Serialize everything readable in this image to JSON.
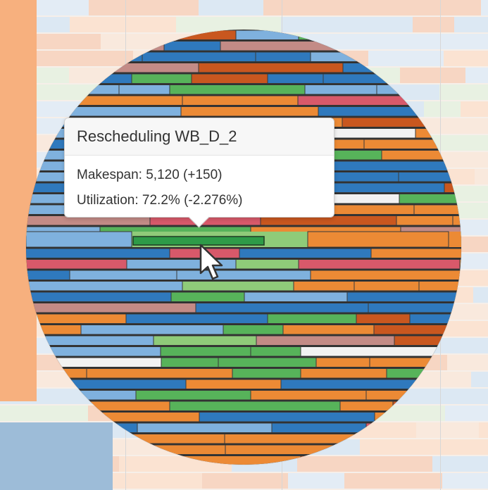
{
  "chart_data": {
    "type": "gantt",
    "mark": "schedule bars (magnified lens view)",
    "colors": {
      "orange": "#ec8a35",
      "dark_orange": "#c9571f",
      "blue": "#2f79bd",
      "light_blue": "#7fb1de",
      "green": "#57b35a",
      "light_green": "#8fcb79",
      "red": "#d8596a",
      "mauve": "#c38b86",
      "white": "#f2f2f2"
    },
    "highlighted_item": "Rescheduling WB_D_2",
    "tooltip": {
      "title": "Rescheduling WB_D_2",
      "makespan_label": "Makespan:",
      "makespan_value": "5,120",
      "makespan_delta": "(+150)",
      "utilization_label": "Utilization:",
      "utilization_value": "72.2%",
      "utilization_delta": "(-2.276%)"
    }
  },
  "tooltip_lines": {
    "title": "Rescheduling WB_D_2",
    "makespan": "Makespan: 5,120 (+150)",
    "utilization": "Utilization: 72.2% (-2.276%)"
  },
  "icons": {
    "cursor": "pointer-arrow-icon"
  }
}
